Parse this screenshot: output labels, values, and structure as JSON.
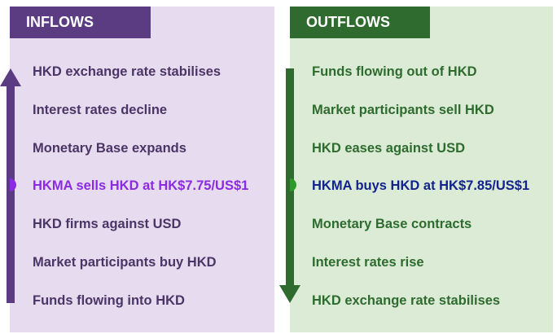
{
  "inflows": {
    "title": "INFLOWS",
    "items": [
      "HKD exchange rate stabilises",
      "Interest rates decline",
      "Monetary Base expands",
      "HKMA sells HKD at HK$7.75/US$1",
      "HKD firms against USD",
      "Market participants buy HKD",
      "Funds flowing into HKD"
    ],
    "highlight_index": 3,
    "arrow_direction": "up",
    "colors": {
      "tab": "#5b3b82",
      "panel": "#e7dcef",
      "text": "#4b3466",
      "highlight": "#8a2be2",
      "arrow": "#5b3b82"
    }
  },
  "outflows": {
    "title": "OUTFLOWS",
    "items": [
      "Funds flowing out of HKD",
      "Market participants sell HKD",
      "HKD eases against USD",
      "HKMA buys HKD at HK$7.85/US$1",
      "Monetary Base contracts",
      "Interest rates rise",
      "HKD exchange rate stabilises"
    ],
    "highlight_index": 3,
    "arrow_direction": "down",
    "colors": {
      "tab": "#2f6b2f",
      "panel": "#dcebd6",
      "text": "#2e6b2e",
      "highlight": "#12248c",
      "arrow": "#2f6b2f"
    }
  }
}
